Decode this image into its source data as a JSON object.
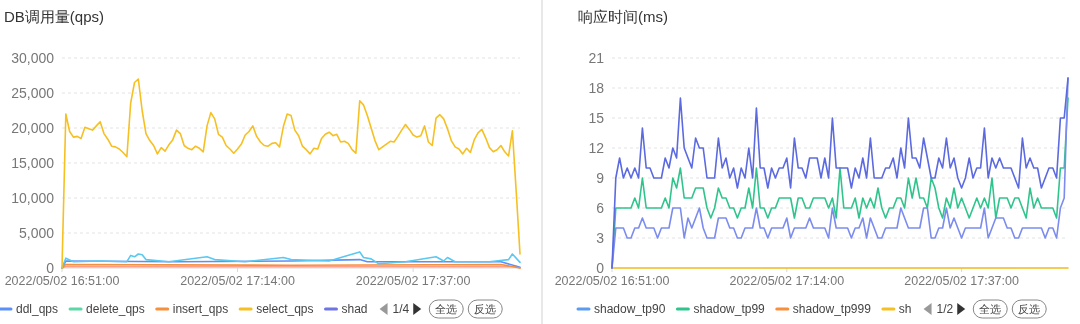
{
  "chart_data": [
    {
      "type": "line",
      "title": "DB调用量(qps)",
      "grid": "y",
      "legend": "bottom",
      "x": [
        "2022-05-02T16:51:00",
        "2022-05-02T16:51:30",
        "2022-05-02T16:52:00",
        "2022-05-02T16:52:30",
        "2022-05-02T16:53:00",
        "2022-05-02T16:53:30",
        "2022-05-02T16:54:00",
        "2022-05-02T16:54:30",
        "2022-05-02T16:55:00",
        "2022-05-02T16:55:30",
        "2022-05-02T16:56:00",
        "2022-05-02T16:56:30",
        "2022-05-02T16:57:00",
        "2022-05-02T16:57:30",
        "2022-05-02T16:58:00",
        "2022-05-02T16:58:30",
        "2022-05-02T16:59:00",
        "2022-05-02T16:59:30",
        "2022-05-02T17:00:00",
        "2022-05-02T17:00:30",
        "2022-05-02T17:01:00",
        "2022-05-02T17:01:30",
        "2022-05-02T17:02:00",
        "2022-05-02T17:02:30",
        "2022-05-02T17:03:00",
        "2022-05-02T17:03:30",
        "2022-05-02T17:04:00",
        "2022-05-02T17:04:30",
        "2022-05-02T17:05:00",
        "2022-05-02T17:05:30",
        "2022-05-02T17:06:00",
        "2022-05-02T17:06:30",
        "2022-05-02T17:07:00",
        "2022-05-02T17:07:30",
        "2022-05-02T17:08:00",
        "2022-05-02T17:08:30",
        "2022-05-02T17:09:00",
        "2022-05-02T17:09:30",
        "2022-05-02T17:10:00",
        "2022-05-02T17:10:30",
        "2022-05-02T17:11:00",
        "2022-05-02T17:11:30",
        "2022-05-02T17:12:00",
        "2022-05-02T17:12:30",
        "2022-05-02T17:13:00",
        "2022-05-02T17:13:30",
        "2022-05-02T17:14:00",
        "2022-05-02T17:14:30",
        "2022-05-02T17:15:00",
        "2022-05-02T17:15:30",
        "2022-05-02T17:16:00",
        "2022-05-02T17:16:30",
        "2022-05-02T17:17:00",
        "2022-05-02T17:17:30",
        "2022-05-02T17:18:00",
        "2022-05-02T17:18:30",
        "2022-05-02T17:19:00",
        "2022-05-02T17:19:30",
        "2022-05-02T17:20:00",
        "2022-05-02T17:20:30",
        "2022-05-02T17:21:00",
        "2022-05-02T17:21:30",
        "2022-05-02T17:22:00",
        "2022-05-02T17:22:30",
        "2022-05-02T17:23:00",
        "2022-05-02T17:23:30",
        "2022-05-02T17:24:00",
        "2022-05-02T17:24:30",
        "2022-05-02T17:25:00",
        "2022-05-02T17:25:30",
        "2022-05-02T17:26:00",
        "2022-05-02T17:26:30",
        "2022-05-02T17:27:00",
        "2022-05-02T17:27:30",
        "2022-05-02T17:28:00",
        "2022-05-02T17:28:30",
        "2022-05-02T17:29:00",
        "2022-05-02T17:29:30",
        "2022-05-02T17:30:00",
        "2022-05-02T17:30:30",
        "2022-05-02T17:31:00",
        "2022-05-02T17:31:30",
        "2022-05-02T17:32:00",
        "2022-05-02T17:32:30",
        "2022-05-02T17:33:00",
        "2022-05-02T17:33:30",
        "2022-05-02T17:34:00",
        "2022-05-02T17:34:30",
        "2022-05-02T17:35:00",
        "2022-05-02T17:35:30",
        "2022-05-02T17:36:00",
        "2022-05-02T17:36:30",
        "2022-05-02T17:37:00",
        "2022-05-02T17:37:30",
        "2022-05-02T17:38:00",
        "2022-05-02T17:38:30",
        "2022-05-02T17:39:00",
        "2022-05-02T17:39:30",
        "2022-05-02T17:40:00",
        "2022-05-02T17:40:30",
        "2022-05-02T17:41:00",
        "2022-05-02T17:41:30",
        "2022-05-02T17:42:00",
        "2022-05-02T17:42:30",
        "2022-05-02T17:43:00",
        "2022-05-02T17:43:30",
        "2022-05-02T17:44:00",
        "2022-05-02T17:44:30",
        "2022-05-02T17:45:00",
        "2022-05-02T17:45:30",
        "2022-05-02T17:46:00",
        "2022-05-02T17:46:30",
        "2022-05-02T17:47:00",
        "2022-05-02T17:47:30",
        "2022-05-02T17:48:00",
        "2022-05-02T17:48:30",
        "2022-05-02T17:49:00",
        "2022-05-02T17:49:30",
        "2022-05-02T17:50:00",
        "2022-05-02T17:50:30",
        "2022-05-02T17:51:00"
      ],
      "xlim": [
        "2022-05-02T16:51:00",
        "2022-05-02T17:51:00"
      ],
      "xticks": [
        {
          "value": "2022-05-02T16:51:00",
          "label": "2022/05/02 16:51:00"
        },
        {
          "value": "2022-05-02T17:14:00",
          "label": "2022/05/02 17:14:00"
        },
        {
          "value": "2022-05-02T17:37:00",
          "label": "2022/05/02 17:37:00"
        }
      ],
      "ylim": [
        0,
        30000
      ],
      "yticks": [
        0,
        {
          "value": 5000,
          "label": "5,000"
        },
        {
          "value": 10000,
          "label": "10,000"
        },
        {
          "value": 15000,
          "label": "15,000"
        },
        {
          "value": 20000,
          "label": "20,000"
        },
        {
          "value": 25000,
          "label": "25,000"
        },
        {
          "value": 30000,
          "label": "30,000"
        }
      ],
      "series": [
        {
          "color": "#ff9d85",
          "x": [
            "2022-05-02T16:51:00",
            "2022-05-02T16:51:30",
            "2022-05-02T17:21:00",
            "2022-05-02T17:50:30",
            "2022-05-02T17:51:00"
          ],
          "values": [
            0,
            200,
            200,
            200,
            0
          ]
        },
        {
          "name": "ddl_qps",
          "color": "#5b8ff9",
          "x": [
            "2022-05-02T16:51:00",
            "2022-05-02T16:51:30",
            "2022-05-02T17:06:00",
            "2022-05-02T17:21:00",
            "2022-05-02T17:30:00",
            "2022-05-02T17:31:00",
            "2022-05-02T17:48:30",
            "2022-05-02T17:51:00"
          ],
          "values": [
            0,
            1000,
            900,
            1000,
            1200,
            900,
            900,
            100
          ]
        },
        {
          "name": "delete_qps",
          "color": "#5ad8a6",
          "values": [
            null,
            null,
            null,
            null,
            null,
            null,
            null,
            null,
            null,
            null,
            null,
            null,
            null,
            null,
            null,
            null,
            null,
            null,
            null,
            null,
            null,
            null,
            null,
            null,
            null,
            null,
            null,
            null,
            null,
            null,
            null,
            null,
            null,
            null,
            null,
            null,
            null,
            null,
            null,
            null,
            null,
            null,
            null,
            null,
            null,
            null,
            null,
            null,
            null,
            null,
            null,
            null,
            null,
            null,
            null,
            null,
            null,
            null,
            null,
            null,
            null,
            null,
            null,
            null,
            null,
            null,
            null,
            null,
            null,
            null,
            null,
            null,
            null,
            null,
            null,
            null,
            null,
            null,
            null,
            null,
            null,
            null,
            null,
            null,
            null,
            null,
            null,
            null,
            null,
            null,
            null,
            null,
            null,
            null,
            null,
            null,
            null,
            null,
            null,
            null,
            null,
            null,
            null,
            null,
            null,
            null,
            null,
            null,
            null,
            null,
            null,
            null,
            null,
            null,
            null,
            null,
            null,
            null,
            null,
            null,
            null
          ]
        },
        {
          "name": "insert_qps",
          "color": "#f6903d",
          "x": [
            "2022-05-02T16:51:00",
            "2022-05-02T16:51:30",
            "2022-05-02T17:21:00",
            "2022-05-02T17:48:30",
            "2022-05-02T17:51:00"
          ],
          "values": [
            0,
            500,
            400,
            500,
            0
          ]
        },
        {
          "color": "#5ac8ef",
          "x": [
            "2022-05-02T16:51:00",
            "2022-05-02T16:51:30",
            "2022-05-02T16:52:30",
            "2022-05-02T16:56:00",
            "2022-05-02T16:59:30",
            "2022-05-02T17:00:00",
            "2022-05-02T17:00:30",
            "2022-05-02T17:01:00",
            "2022-05-02T17:01:30",
            "2022-05-02T17:02:00",
            "2022-05-02T17:05:00",
            "2022-05-02T17:10:00",
            "2022-05-02T17:11:00",
            "2022-05-02T17:15:00",
            "2022-05-02T17:20:00",
            "2022-05-02T17:21:00",
            "2022-05-02T17:26:00",
            "2022-05-02T17:30:00",
            "2022-05-02T17:30:30",
            "2022-05-02T17:31:30",
            "2022-05-02T17:32:30",
            "2022-05-02T17:36:00",
            "2022-05-02T17:40:00",
            "2022-05-02T17:41:00",
            "2022-05-02T17:41:30",
            "2022-05-02T17:42:30",
            "2022-05-02T17:47:00",
            "2022-05-02T17:49:30",
            "2022-05-02T17:50:00",
            "2022-05-02T17:51:00"
          ],
          "values": [
            0,
            1400,
            900,
            1000,
            900,
            1800,
            1600,
            2000,
            1900,
            1200,
            900,
            1600,
            1200,
            900,
            1500,
            1200,
            1000,
            2300,
            1500,
            1300,
            600,
            900,
            1600,
            1000,
            1500,
            900,
            900,
            1200,
            2000,
            800
          ]
        },
        {
          "name": "select_qps",
          "color": "#f6c022",
          "values": [
            0,
            22000,
            19500,
            18700,
            18800,
            18500,
            20100,
            19900,
            19700,
            20300,
            20900,
            19200,
            18400,
            17400,
            17300,
            17000,
            16500,
            15900,
            23600,
            26500,
            27000,
            22500,
            19200,
            18200,
            17500,
            16300,
            17200,
            16700,
            17600,
            18300,
            19700,
            19200,
            17500,
            17100,
            16900,
            17400,
            17100,
            16600,
            20300,
            22200,
            21300,
            19100,
            18700,
            17500,
            17000,
            16400,
            17000,
            17700,
            19000,
            19500,
            20300,
            18800,
            18000,
            17500,
            17400,
            17800,
            17900,
            17300,
            20200,
            22000,
            21800,
            19700,
            18900,
            17400,
            16900,
            16300,
            17100,
            17000,
            18500,
            19100,
            19400,
            18900,
            19100,
            18000,
            18100,
            17800,
            16900,
            16400,
            23900,
            23300,
            21800,
            20000,
            18200,
            16900,
            17300,
            17700,
            18100,
            18000,
            18800,
            19700,
            20500,
            19800,
            19000,
            18700,
            18900,
            20300,
            18000,
            17500,
            21400,
            21900,
            21300,
            19900,
            18200,
            17300,
            17000,
            16300,
            17100,
            16500,
            18300,
            19300,
            19800,
            18600,
            17200,
            16600,
            16900,
            17500,
            16600,
            16000,
            19600,
            11000,
            2000
          ]
        },
        {
          "name": "shad",
          "color": "#6f75e0",
          "values": [
            null,
            null,
            null,
            null,
            null,
            null,
            null,
            null,
            null,
            null,
            null,
            null,
            null,
            null,
            null,
            null,
            null,
            null,
            null,
            null,
            null,
            null,
            null,
            null,
            null,
            null,
            null,
            null,
            null,
            null,
            null,
            null,
            null,
            null,
            null,
            null,
            null,
            null,
            null,
            null,
            null,
            null,
            null,
            null,
            null,
            null,
            null,
            null,
            null,
            null,
            null,
            null,
            null,
            null,
            null,
            null,
            null,
            null,
            null,
            null,
            null,
            null,
            null,
            null,
            null,
            null,
            null,
            null,
            null,
            null,
            null,
            null,
            null,
            null,
            null,
            null,
            null,
            null,
            null,
            null,
            null,
            null,
            null,
            null,
            null,
            null,
            null,
            null,
            null,
            null,
            null,
            null,
            null,
            null,
            null,
            null,
            null,
            null,
            null,
            null,
            null,
            null,
            null,
            null,
            null,
            null,
            null,
            null,
            null,
            null,
            null,
            null,
            null,
            null,
            null,
            null,
            null,
            null,
            null,
            null,
            null
          ]
        }
      ],
      "annotations": [
        "1/4",
        "全选",
        "反选"
      ]
    },
    {
      "type": "line",
      "title": "响应时间(ms)",
      "grid": "y",
      "legend": "bottom",
      "x": [
        "2022-05-02T16:51:00",
        "2022-05-02T16:51:30",
        "2022-05-02T16:52:00",
        "2022-05-02T16:52:30",
        "2022-05-02T16:53:00",
        "2022-05-02T16:53:30",
        "2022-05-02T16:54:00",
        "2022-05-02T16:54:30",
        "2022-05-02T16:55:00",
        "2022-05-02T16:55:30",
        "2022-05-02T16:56:00",
        "2022-05-02T16:56:30",
        "2022-05-02T16:57:00",
        "2022-05-02T16:57:30",
        "2022-05-02T16:58:00",
        "2022-05-02T16:58:30",
        "2022-05-02T16:59:00",
        "2022-05-02T16:59:30",
        "2022-05-02T17:00:00",
        "2022-05-02T17:00:30",
        "2022-05-02T17:01:00",
        "2022-05-02T17:01:30",
        "2022-05-02T17:02:00",
        "2022-05-02T17:02:30",
        "2022-05-02T17:03:00",
        "2022-05-02T17:03:30",
        "2022-05-02T17:04:00",
        "2022-05-02T17:04:30",
        "2022-05-02T17:05:00",
        "2022-05-02T17:05:30",
        "2022-05-02T17:06:00",
        "2022-05-02T17:06:30",
        "2022-05-02T17:07:00",
        "2022-05-02T17:07:30",
        "2022-05-02T17:08:00",
        "2022-05-02T17:08:30",
        "2022-05-02T17:09:00",
        "2022-05-02T17:09:30",
        "2022-05-02T17:10:00",
        "2022-05-02T17:10:30",
        "2022-05-02T17:11:00",
        "2022-05-02T17:11:30",
        "2022-05-02T17:12:00",
        "2022-05-02T17:12:30",
        "2022-05-02T17:13:00",
        "2022-05-02T17:13:30",
        "2022-05-02T17:14:00",
        "2022-05-02T17:14:30",
        "2022-05-02T17:15:00",
        "2022-05-02T17:15:30",
        "2022-05-02T17:16:00",
        "2022-05-02T17:16:30",
        "2022-05-02T17:17:00",
        "2022-05-02T17:17:30",
        "2022-05-02T17:18:00",
        "2022-05-02T17:18:30",
        "2022-05-02T17:19:00",
        "2022-05-02T17:19:30",
        "2022-05-02T17:20:00",
        "2022-05-02T17:20:30",
        "2022-05-02T17:21:00",
        "2022-05-02T17:21:30",
        "2022-05-02T17:22:00",
        "2022-05-02T17:22:30",
        "2022-05-02T17:23:00",
        "2022-05-02T17:23:30",
        "2022-05-02T17:24:00",
        "2022-05-02T17:24:30",
        "2022-05-02T17:25:00",
        "2022-05-02T17:25:30",
        "2022-05-02T17:26:00",
        "2022-05-02T17:26:30",
        "2022-05-02T17:27:00",
        "2022-05-02T17:27:30",
        "2022-05-02T17:28:00",
        "2022-05-02T17:28:30",
        "2022-05-02T17:29:00",
        "2022-05-02T17:29:30",
        "2022-05-02T17:30:00",
        "2022-05-02T17:30:30",
        "2022-05-02T17:31:00",
        "2022-05-02T17:31:30",
        "2022-05-02T17:32:00",
        "2022-05-02T17:32:30",
        "2022-05-02T17:33:00",
        "2022-05-02T17:33:30",
        "2022-05-02T17:34:00",
        "2022-05-02T17:34:30",
        "2022-05-02T17:35:00",
        "2022-05-02T17:35:30",
        "2022-05-02T17:36:00",
        "2022-05-02T17:36:30",
        "2022-05-02T17:37:00",
        "2022-05-02T17:37:30",
        "2022-05-02T17:38:00",
        "2022-05-02T17:38:30",
        "2022-05-02T17:39:00",
        "2022-05-02T17:39:30",
        "2022-05-02T17:40:00",
        "2022-05-02T17:40:30",
        "2022-05-02T17:41:00",
        "2022-05-02T17:41:30",
        "2022-05-02T17:42:00",
        "2022-05-02T17:42:30",
        "2022-05-02T17:43:00",
        "2022-05-02T17:43:30",
        "2022-05-02T17:44:00",
        "2022-05-02T17:44:30",
        "2022-05-02T17:45:00",
        "2022-05-02T17:45:30",
        "2022-05-02T17:46:00",
        "2022-05-02T17:46:30",
        "2022-05-02T17:47:00",
        "2022-05-02T17:47:30",
        "2022-05-02T17:48:00",
        "2022-05-02T17:48:30",
        "2022-05-02T17:49:00",
        "2022-05-02T17:49:30",
        "2022-05-02T17:50:00",
        "2022-05-02T17:50:30",
        "2022-05-02T17:51:00"
      ],
      "xlim": [
        "2022-05-02T16:51:00",
        "2022-05-02T17:51:00"
      ],
      "xticks": [
        {
          "value": "2022-05-02T16:51:00",
          "label": "2022/05/02 16:51:00"
        },
        {
          "value": "2022-05-02T17:14:00",
          "label": "2022/05/02 17:14:00"
        },
        {
          "value": "2022-05-02T17:37:00",
          "label": "2022/05/02 17:37:00"
        }
      ],
      "ylim": [
        0,
        21
      ],
      "yticks": [
        0,
        3,
        6,
        9,
        12,
        15,
        18,
        21
      ],
      "series": [
        {
          "name": "shadow_tp90",
          "color": "#5b9bf0",
          "values": [
            null,
            null,
            null,
            null,
            null,
            null,
            null,
            null,
            null,
            null,
            null,
            null,
            null,
            null,
            null,
            null,
            null,
            null,
            null,
            null,
            null,
            null,
            null,
            null,
            null,
            null,
            null,
            null,
            null,
            null,
            null,
            null,
            null,
            null,
            null,
            null,
            null,
            null,
            null,
            null,
            null,
            null,
            null,
            null,
            null,
            null,
            null,
            null,
            null,
            null,
            null,
            null,
            null,
            null,
            null,
            null,
            null,
            null,
            null,
            null,
            null,
            null,
            null,
            null,
            null,
            null,
            null,
            null,
            null,
            null,
            null,
            null,
            null,
            null,
            null,
            null,
            null,
            null,
            null,
            null,
            null,
            null,
            null,
            null,
            null,
            null,
            null,
            null,
            null,
            null,
            null,
            null,
            null,
            null,
            null,
            null,
            null,
            null,
            null,
            null,
            null,
            null,
            null,
            null,
            null,
            null,
            null,
            null,
            null,
            null,
            null,
            null,
            null,
            null,
            null,
            null,
            null,
            null,
            null,
            null,
            null
          ]
        },
        {
          "name": "shadow_tp99",
          "color": "#30c48d",
          "values": [
            0,
            6,
            6,
            6,
            6,
            6,
            7,
            6,
            9,
            6,
            6,
            6,
            6,
            6,
            7,
            6,
            9,
            8,
            10,
            7,
            7,
            7,
            8,
            8,
            8,
            6,
            5,
            6,
            8,
            7,
            7,
            6,
            6,
            5,
            6,
            6,
            8,
            6,
            10,
            6,
            6,
            5,
            6,
            6,
            7,
            7,
            7,
            7,
            5,
            7,
            7,
            6,
            6,
            7,
            7,
            7,
            7,
            6,
            7,
            5,
            10,
            6,
            6,
            6,
            7,
            5,
            7,
            6,
            7,
            6,
            8,
            6,
            5,
            6,
            6,
            7,
            7,
            6,
            9,
            7,
            9,
            7,
            7,
            6,
            9,
            8,
            6,
            5,
            7,
            6,
            8,
            6,
            7,
            6,
            5,
            6,
            7,
            6,
            7,
            6,
            9,
            5,
            7,
            7,
            7,
            6,
            7,
            7,
            6,
            5,
            8,
            6,
            7,
            6,
            6,
            6,
            6,
            5,
            10,
            10,
            17
          ]
        },
        {
          "name": "shadow_tp999",
          "color": "#f6903d",
          "values": [
            null,
            null,
            null,
            null,
            null,
            null,
            null,
            null,
            null,
            null,
            null,
            null,
            null,
            null,
            null,
            null,
            null,
            null,
            null,
            null,
            null,
            null,
            null,
            null,
            null,
            null,
            null,
            null,
            null,
            null,
            null,
            null,
            null,
            null,
            null,
            null,
            null,
            null,
            null,
            null,
            null,
            null,
            null,
            null,
            null,
            null,
            null,
            null,
            null,
            null,
            null,
            null,
            null,
            null,
            null,
            null,
            null,
            null,
            null,
            null,
            null,
            null,
            null,
            null,
            null,
            null,
            null,
            null,
            null,
            null,
            null,
            null,
            null,
            null,
            null,
            null,
            null,
            null,
            null,
            null,
            null,
            null,
            null,
            null,
            null,
            null,
            null,
            null,
            null,
            null,
            null,
            null,
            null,
            null,
            null,
            null,
            null,
            null,
            null,
            null,
            null,
            null,
            null,
            null,
            null,
            null,
            null,
            null,
            null,
            null,
            null,
            null,
            null,
            null,
            null,
            null,
            null,
            null,
            null,
            null,
            null
          ]
        },
        {
          "name": "sh",
          "color": "#f6c022",
          "x": [
            "2022-05-02T16:51:00",
            "2022-05-02T17:51:00"
          ],
          "values": [
            0,
            0
          ]
        },
        {
          "color": "#7b8cee",
          "values": [
            0,
            4,
            4,
            4,
            3,
            3,
            4,
            4,
            5,
            4,
            4,
            4,
            3,
            4,
            4,
            4,
            6,
            6,
            6,
            3,
            5,
            4,
            5,
            6,
            4,
            3,
            3,
            3,
            5,
            5,
            5,
            4,
            4,
            3,
            3,
            4,
            4,
            4,
            6,
            4,
            4,
            3,
            4,
            4,
            4,
            4,
            5,
            3,
            4,
            4,
            4,
            4,
            5,
            4,
            4,
            4,
            4,
            3,
            6,
            4,
            4,
            4,
            4,
            3,
            4,
            4,
            5,
            3,
            5,
            4,
            3,
            3,
            4,
            4,
            4,
            4,
            6,
            5,
            4,
            4,
            4,
            4,
            6,
            6,
            3,
            3,
            4,
            4,
            6,
            4,
            5,
            4,
            3,
            4,
            4,
            4,
            4,
            4,
            6,
            3,
            4,
            5,
            5,
            5,
            4,
            4,
            3,
            3,
            4,
            4,
            4,
            4,
            4,
            4,
            3,
            4,
            4,
            3,
            6,
            7,
            19
          ]
        },
        {
          "color": "#5b6ae0",
          "values": [
            0,
            9,
            11,
            9,
            10,
            9,
            10,
            9,
            14,
            10,
            10,
            9,
            9,
            9,
            11,
            10,
            12,
            11,
            17,
            12,
            11,
            10,
            13,
            12,
            12,
            9,
            9,
            9,
            13,
            10,
            11,
            9,
            10,
            8,
            10,
            9,
            12,
            9,
            16,
            10,
            10,
            8,
            10,
            9,
            10,
            10,
            11,
            8,
            13,
            10,
            10,
            9,
            11,
            11,
            11,
            9,
            11,
            9,
            15,
            10,
            10,
            10,
            10,
            8,
            10,
            9,
            11,
            9,
            13,
            9,
            9,
            9,
            10,
            10,
            11,
            9,
            12,
            10,
            15,
            11,
            11,
            10,
            13,
            11,
            9,
            9,
            11,
            10,
            13,
            10,
            11,
            9,
            8,
            9,
            11,
            9,
            10,
            10,
            14,
            9,
            11,
            10,
            11,
            10,
            10,
            10,
            9,
            8,
            13,
            10,
            11,
            10,
            10,
            8,
            9,
            10,
            10,
            9,
            15,
            15,
            19
          ]
        }
      ],
      "annotations": [
        "1/2",
        "全选",
        "反选"
      ]
    }
  ]
}
